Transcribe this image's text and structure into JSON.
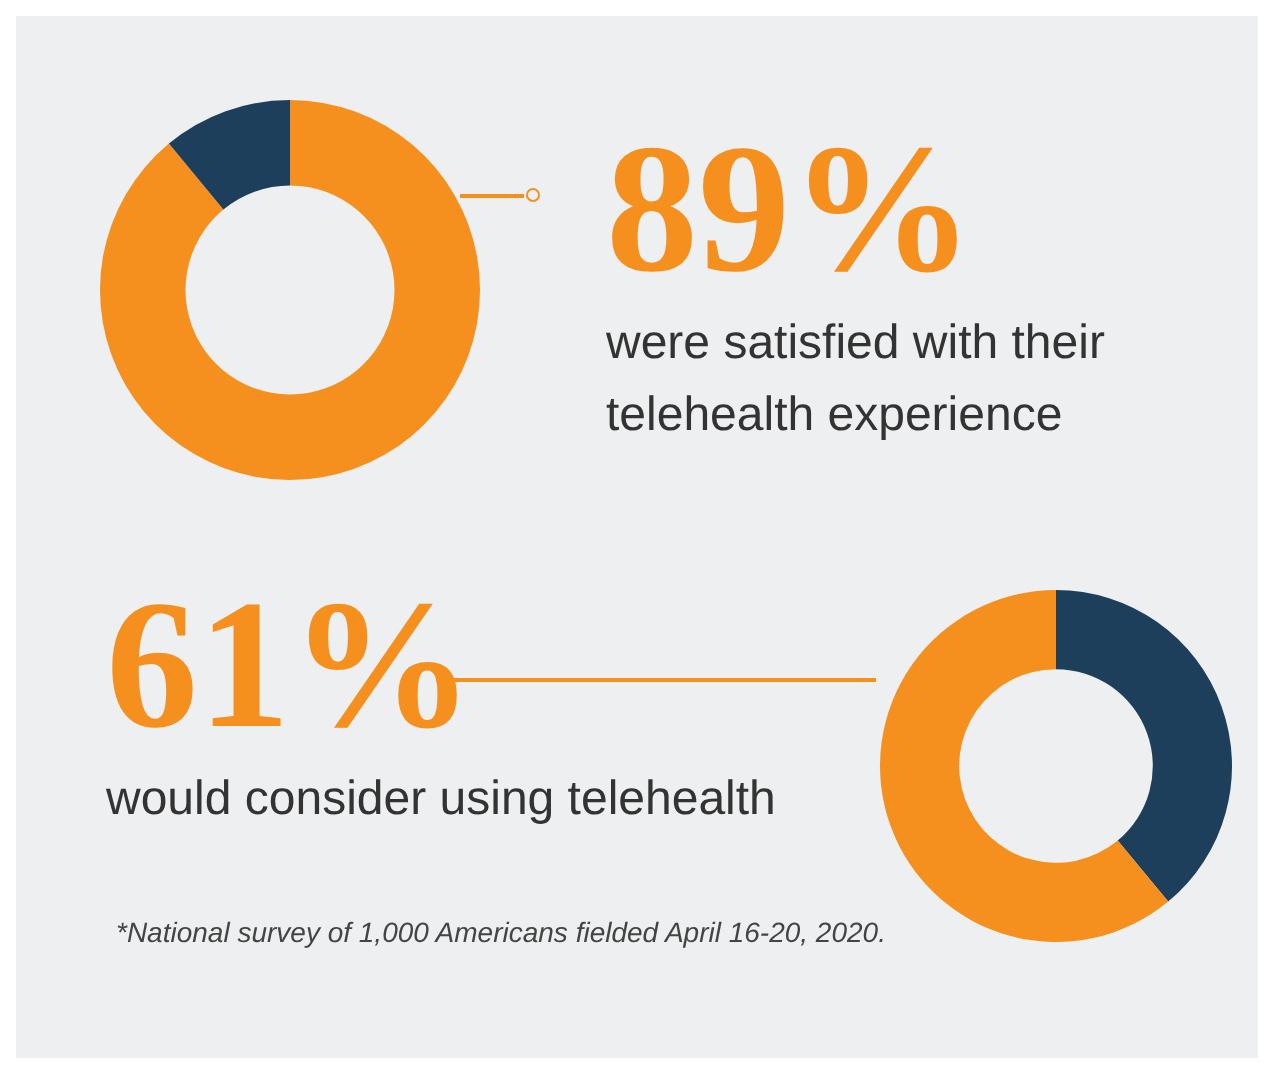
{
  "chart_data": [
    {
      "type": "donut",
      "categories": [
        null,
        null
      ],
      "values": [
        89,
        11
      ],
      "colors": [
        "#f5901e",
        "#1d3f5c"
      ],
      "value_labels": [
        "89%",
        null
      ],
      "annotations": [
        "were satisfied with their telehealth experience"
      ]
    },
    {
      "type": "donut",
      "categories": [
        null,
        null
      ],
      "values": [
        39,
        61
      ],
      "colors": [
        "#1d3f5c",
        "#f5901e"
      ],
      "value_labels": [
        null,
        "61%"
      ],
      "annotations": [
        "would consider using telehealth",
        "*National survey of 1,000 Americans fielded April 16-20, 2020."
      ]
    }
  ]
}
